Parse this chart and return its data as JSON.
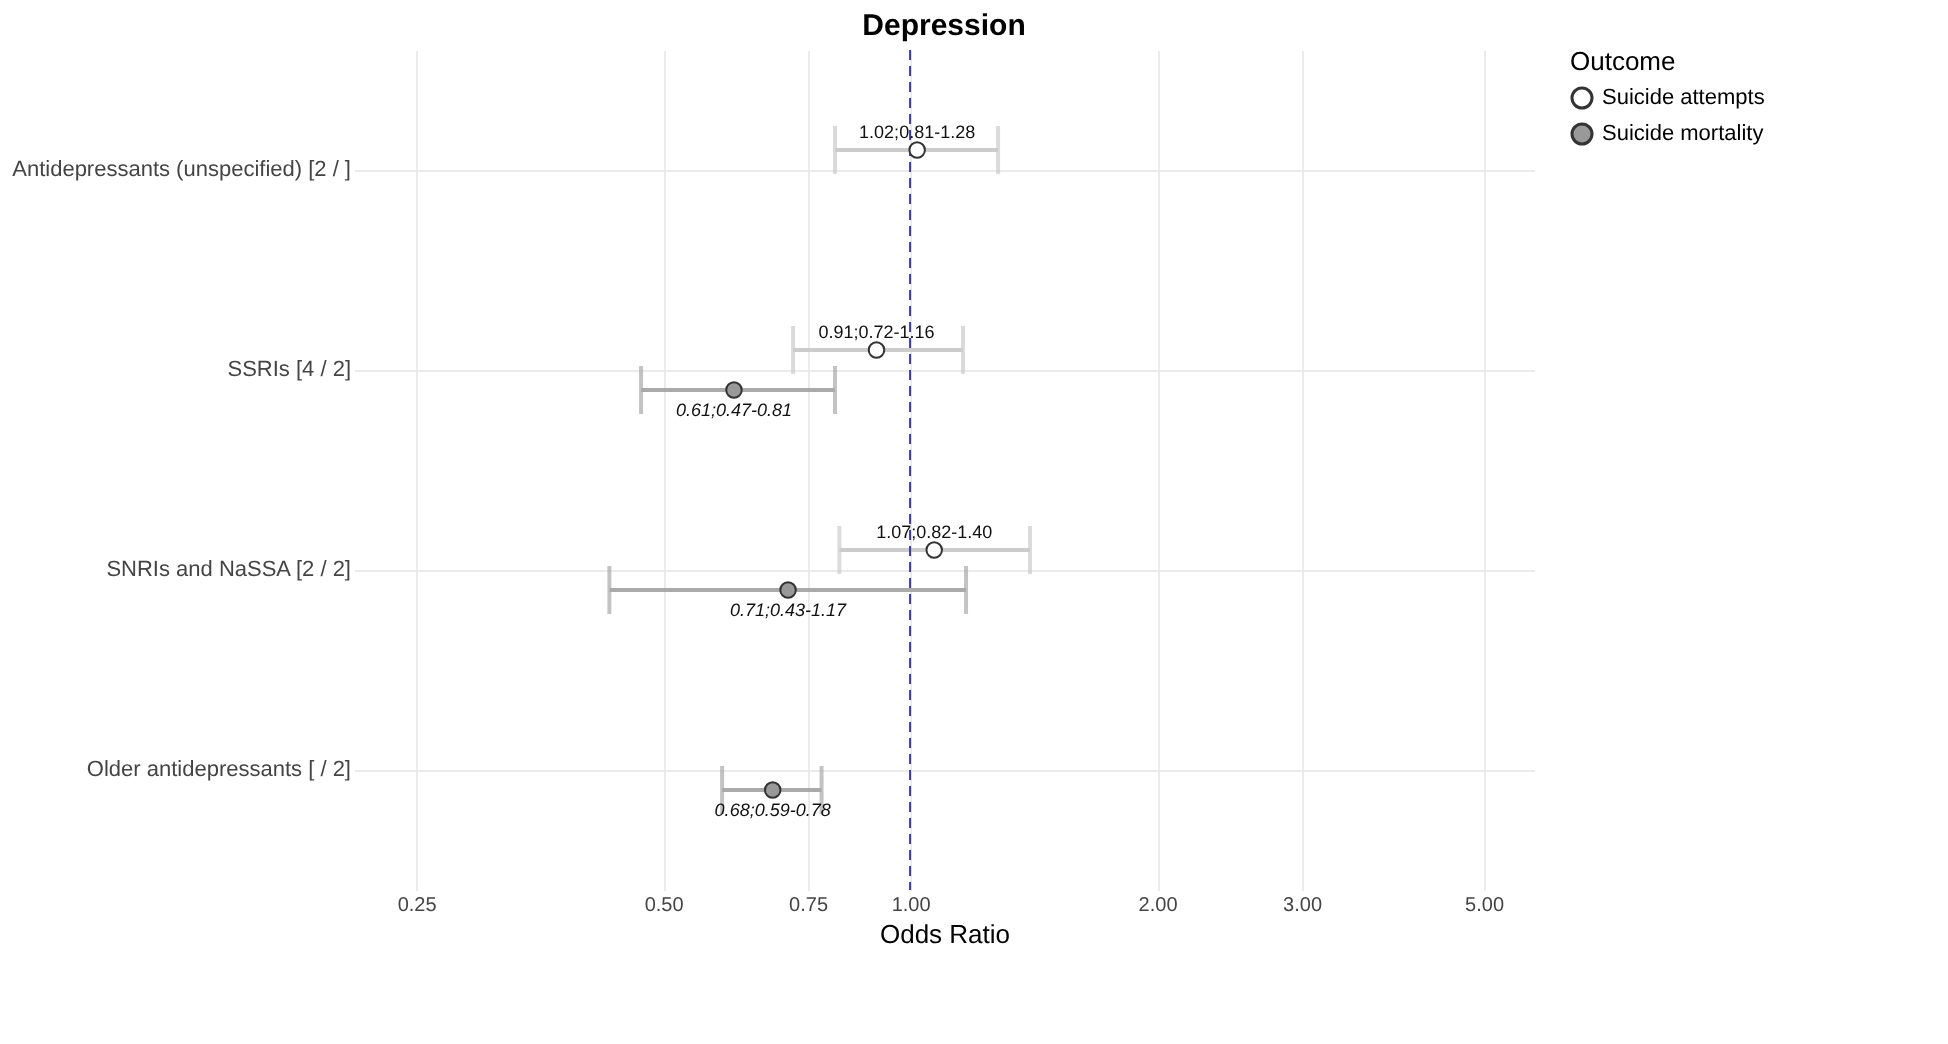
{
  "chart_data": {
    "type": "scatter",
    "orientation": "horizontal",
    "title": "Depression",
    "xlabel": "Odds Ratio",
    "legend_title": "Outcome",
    "legend": "right",
    "categories": [
      "Antidepressants (unspecified) [2 / ]",
      "SSRIs [4 / 2]",
      "SNRIs and NaSSA [2 / 2]",
      "Older antidepressants [ / 2]"
    ],
    "series": [
      {
        "name": "Suicide attempts",
        "color": "#ffffff",
        "values": [
          1.02,
          0.91,
          1.07,
          null
        ],
        "errors": [
          [
            0.81,
            1.28
          ],
          [
            0.72,
            1.16
          ],
          [
            0.82,
            1.4
          ],
          null
        ],
        "value_labels": [
          "1.02;0.81-1.28",
          "0.91;0.72-1.16",
          "1.07;0.82-1.40",
          null
        ]
      },
      {
        "name": "Suicide mortality",
        "color": "#999999",
        "values": [
          null,
          0.61,
          0.71,
          0.68
        ],
        "errors": [
          null,
          [
            0.47,
            0.81
          ],
          [
            0.43,
            1.17
          ],
          [
            0.59,
            0.78
          ]
        ],
        "value_labels": [
          null,
          "0.61;0.47-0.81",
          "0.71;0.43-1.17",
          "0.68;0.59-0.78"
        ]
      }
    ],
    "log": "x",
    "xlim": [
      0.21,
      5.76
    ],
    "xticks": [
      {
        "value": 0.25,
        "label": "0.25"
      },
      {
        "value": 0.5,
        "label": "0.50"
      },
      {
        "value": 0.75,
        "label": "0.75"
      },
      {
        "value": 1,
        "label": "1.00"
      },
      {
        "value": 2,
        "label": "2.00"
      },
      {
        "value": 3,
        "label": "3.00"
      },
      {
        "value": 5,
        "label": "5.00"
      }
    ],
    "ref_lines": [
      {
        "axis": "x",
        "value": 1,
        "color": "#3b3ba0",
        "line_style": "dashed"
      }
    ],
    "grid": true,
    "marker": "circle"
  }
}
